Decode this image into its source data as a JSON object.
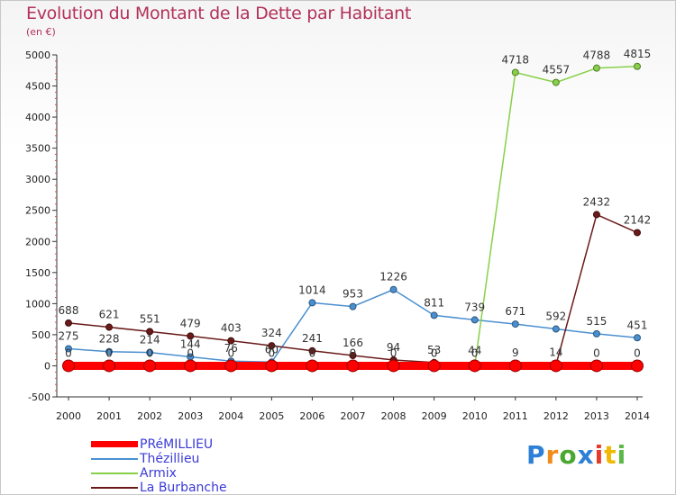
{
  "chart_data": {
    "type": "line",
    "title": "Evolution du Montant de la Dette par Habitant",
    "subtitle": "(en €)",
    "ylim": [
      -500,
      5000
    ],
    "y_ticks": [
      -500,
      0,
      500,
      1000,
      1500,
      2000,
      2500,
      3000,
      3500,
      4000,
      4500,
      5000
    ],
    "x": [
      "2000",
      "2001",
      "2002",
      "2003",
      "2004",
      "2005",
      "2006",
      "2007",
      "2008",
      "2009",
      "2010",
      "2011",
      "2012",
      "2013",
      "2014"
    ],
    "grid": false,
    "legend_position": "bottom-left",
    "series": [
      {
        "name": "PRéMILLIEU",
        "color": "#ff0000",
        "values": [
          0,
          0,
          0,
          0,
          0,
          0,
          0,
          0,
          0,
          0,
          0,
          0,
          0,
          0,
          0
        ],
        "labels": [
          "",
          "",
          "",
          "",
          "",
          "",
          "",
          "",
          "",
          "",
          "",
          "",
          "",
          "0",
          "0"
        ]
      },
      {
        "name": "Thézillieu",
        "color": "#4a90d0",
        "values": [
          275,
          228,
          214,
          144,
          76,
          60,
          1014,
          953,
          1226,
          811,
          739,
          671,
          592,
          515,
          451
        ],
        "labels": [
          "275",
          "228",
          "214",
          "144",
          "76",
          "60",
          "1014",
          "953",
          "1226",
          "811",
          "739",
          "671",
          "592",
          "515",
          "451"
        ]
      },
      {
        "name": "Armix",
        "color": "#88d048",
        "values": [
          0,
          0,
          0,
          0,
          0,
          0,
          0,
          0,
          0,
          0,
          0,
          4718,
          4557,
          4788,
          4815
        ],
        "labels": [
          "0",
          "0",
          "0",
          "0",
          "0",
          "0",
          "0",
          "0",
          "0",
          "0",
          "0",
          "4718",
          "4557",
          "4788",
          "4815"
        ]
      },
      {
        "name": "La Burbanche",
        "color": "#6b1a1a",
        "values": [
          688,
          621,
          551,
          479,
          403,
          324,
          241,
          166,
          94,
          53,
          44,
          9,
          14,
          null,
          null
        ],
        "labels": [
          "688",
          "621",
          "551",
          "479",
          "403",
          "324",
          "241",
          "166",
          "94",
          "53",
          "44",
          "9",
          "14",
          "",
          ""
        ],
        "extra_points": [
          {
            "x": "2013",
            "value": 2432,
            "label": "2432"
          },
          {
            "x": "2014",
            "value": 2142,
            "label": "2142"
          }
        ]
      }
    ]
  },
  "logo": {
    "text": "Proxiti",
    "colors": [
      "#2e7fd6",
      "#f08c1c",
      "#4aa830",
      "#2e7fd6",
      "#e53b2c",
      "#f0b800",
      "#5ab848"
    ]
  }
}
